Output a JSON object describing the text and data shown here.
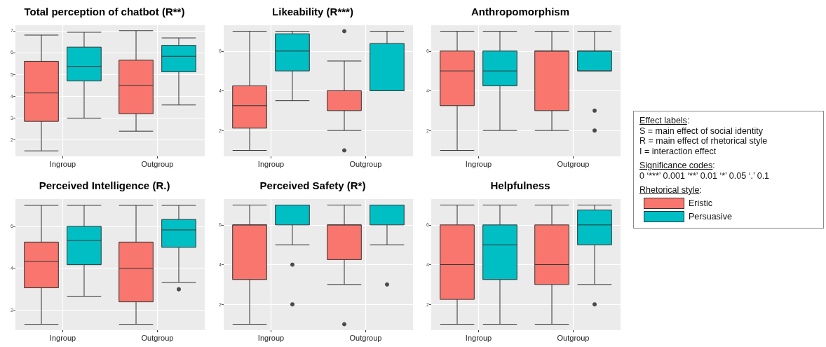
{
  "chart_data": [
    {
      "type": "box",
      "title": "Total perception of chatbot (R**)",
      "categories": [
        "Ingroup",
        "Outgroup"
      ],
      "ylim": [
        1.25,
        7.25
      ],
      "yticks": [
        2,
        3,
        4,
        5,
        6,
        7
      ],
      "grid": true,
      "series": [
        {
          "color": "#f8766d",
          "boxes": [
            {
              "low": 1.5,
              "q1": 2.85,
              "median": 4.15,
              "q3": 5.6,
              "high": 6.8
            },
            {
              "low": 2.4,
              "q1": 3.2,
              "median": 4.5,
              "q3": 5.65,
              "high": 7
            }
          ]
        },
        {
          "color": "#00bfc4",
          "boxes": [
            {
              "low": 3,
              "q1": 4.7,
              "median": 5.37,
              "q3": 6.25,
              "high": 6.93
            },
            {
              "low": 3.6,
              "q1": 5.12,
              "median": 5.83,
              "q3": 6.33,
              "high": 6.67
            }
          ]
        }
      ]
    },
    {
      "type": "box",
      "title": "Likeability (R***)",
      "categories": [
        "Ingroup",
        "Outgroup"
      ],
      "ylim": [
        0.7,
        7.3
      ],
      "yticks": [
        2,
        4,
        6
      ],
      "grid": true,
      "series": [
        {
          "color": "#f8766d",
          "boxes": [
            {
              "low": 1,
              "q1": 2.12,
              "median": 3.25,
              "q3": 4.25,
              "high": 7
            },
            {
              "low": 2,
              "q1": 3,
              "median": 4,
              "q3": 4,
              "high": 5.5,
              "outliers": [
                7,
                1
              ]
            }
          ]
        },
        {
          "color": "#00bfc4",
          "boxes": [
            {
              "low": 3.5,
              "q1": 5,
              "median": 6,
              "q3": 6.87,
              "high": 7
            },
            {
              "low": 4,
              "q1": 4,
              "median": 4,
              "q3": 6.38,
              "high": 7
            }
          ]
        }
      ]
    },
    {
      "type": "box",
      "title": "Anthropomorphism",
      "categories": [
        "Ingroup",
        "Outgroup"
      ],
      "ylim": [
        0.7,
        7.3
      ],
      "yticks": [
        2,
        4,
        6
      ],
      "grid": true,
      "series": [
        {
          "color": "#f8766d",
          "boxes": [
            {
              "low": 1,
              "q1": 3.25,
              "median": 5,
              "q3": 6,
              "high": 7
            },
            {
              "low": 2,
              "q1": 3,
              "median": 6,
              "q3": 6,
              "high": 7
            }
          ]
        },
        {
          "color": "#00bfc4",
          "boxes": [
            {
              "low": 2,
              "q1": 4.25,
              "median": 5,
              "q3": 6,
              "high": 7
            },
            {
              "low": 5,
              "q1": 5,
              "median": 6,
              "q3": 6,
              "high": 7,
              "outliers": [
                3,
                2
              ]
            }
          ]
        }
      ]
    },
    {
      "type": "box",
      "title": "Perceived Intelligence (R.)",
      "categories": [
        "Ingroup",
        "Outgroup"
      ],
      "ylim": [
        1.05,
        7.3
      ],
      "yticks": [
        2,
        4,
        6
      ],
      "grid": true,
      "series": [
        {
          "color": "#f8766d",
          "boxes": [
            {
              "low": 1.33,
              "q1": 3.07,
              "median": 4.33,
              "q3": 5.25,
              "high": 7
            },
            {
              "low": 1.33,
              "q1": 2.4,
              "median": 4,
              "q3": 5.25,
              "high": 7
            }
          ]
        },
        {
          "color": "#00bfc4",
          "boxes": [
            {
              "low": 2.67,
              "q1": 4.17,
              "median": 5.33,
              "q3": 6,
              "high": 7
            },
            {
              "low": 3.33,
              "q1": 5,
              "median": 5.83,
              "q3": 6.33,
              "high": 7,
              "outliers": [
                3
              ]
            }
          ]
        }
      ]
    },
    {
      "type": "box",
      "title": "Perceived Safety (R*)",
      "categories": [
        "Ingroup",
        "Outgroup"
      ],
      "ylim": [
        0.7,
        7.3
      ],
      "yticks": [
        2,
        4,
        6
      ],
      "grid": true,
      "series": [
        {
          "color": "#f8766d",
          "boxes": [
            {
              "low": 1,
              "q1": 3.25,
              "median": 6,
              "q3": 6,
              "high": 7
            },
            {
              "low": 3,
              "q1": 4.25,
              "median": 6,
              "q3": 6,
              "high": 7,
              "outliers": [
                1
              ]
            }
          ]
        },
        {
          "color": "#00bfc4",
          "boxes": [
            {
              "low": 5,
              "q1": 6,
              "median": 7,
              "q3": 7,
              "high": 7,
              "outliers": [
                4,
                2
              ]
            },
            {
              "low": 5,
              "q1": 6,
              "median": 7,
              "q3": 7,
              "high": 7,
              "outliers": [
                3
              ]
            }
          ]
        }
      ]
    },
    {
      "type": "box",
      "title": "Helpfulness",
      "categories": [
        "Ingroup",
        "Outgroup"
      ],
      "ylim": [
        0.7,
        7.3
      ],
      "yticks": [
        2,
        4,
        6
      ],
      "grid": true,
      "series": [
        {
          "color": "#f8766d",
          "boxes": [
            {
              "low": 1,
              "q1": 2.25,
              "median": 4,
              "q3": 6,
              "high": 7
            },
            {
              "low": 1,
              "q1": 3,
              "median": 4,
              "q3": 6,
              "high": 7
            }
          ]
        },
        {
          "color": "#00bfc4",
          "boxes": [
            {
              "low": 1,
              "q1": 3.25,
              "median": 5,
              "q3": 6,
              "high": 7
            },
            {
              "low": 3,
              "q1": 5,
              "median": 6,
              "q3": 6.75,
              "high": 7,
              "outliers": [
                2
              ]
            }
          ]
        }
      ]
    },
    {
      "type": "other",
      "annotations": [
        "Effect labels:",
        "S = main effect of social identity",
        "R = main effect of rhetorical style",
        "I = interaction effect",
        "Significance codes:",
        "0 ‘***’ 0.001 ‘**’ 0.01 ‘*’ 0.05 ‘.’ 0.1"
      ],
      "legend_title": "Rhetorical style:",
      "series": [
        {
          "name": "Eristic",
          "color": "#f8766d"
        },
        {
          "name": "Persuasive",
          "color": "#00bfc4"
        }
      ]
    }
  ]
}
